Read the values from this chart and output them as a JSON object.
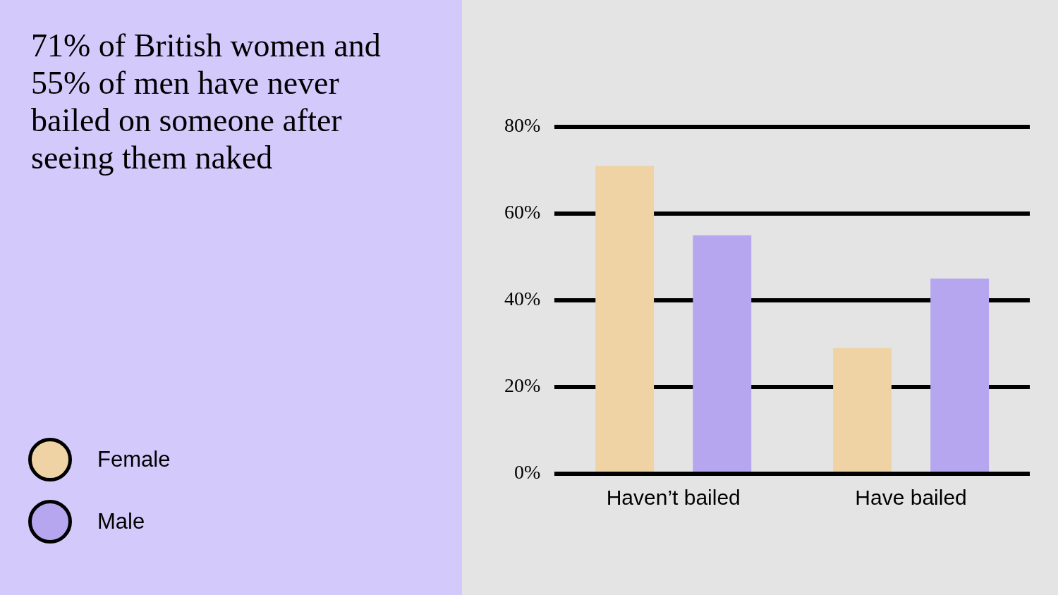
{
  "chart_data": {
    "type": "bar",
    "title": "71% of British women and 55% of men have never bailed on someone after seeing them naked",
    "categories": [
      "Haven’t bailed",
      "Have bailed"
    ],
    "series": [
      {
        "name": "Female",
        "color": "#efd3a5",
        "values": [
          71,
          29
        ]
      },
      {
        "name": "Male",
        "color": "#b6a6f0",
        "values": [
          55,
          45
        ]
      }
    ],
    "ylim": [
      0,
      80
    ],
    "yticks": [
      {
        "value": 0,
        "label": "0%"
      },
      {
        "value": 20,
        "label": "20%"
      },
      {
        "value": 40,
        "label": "40%"
      },
      {
        "value": 60,
        "label": "60%"
      },
      {
        "value": 80,
        "label": "80%"
      }
    ],
    "grid": "y",
    "legend": "bottom left"
  }
}
